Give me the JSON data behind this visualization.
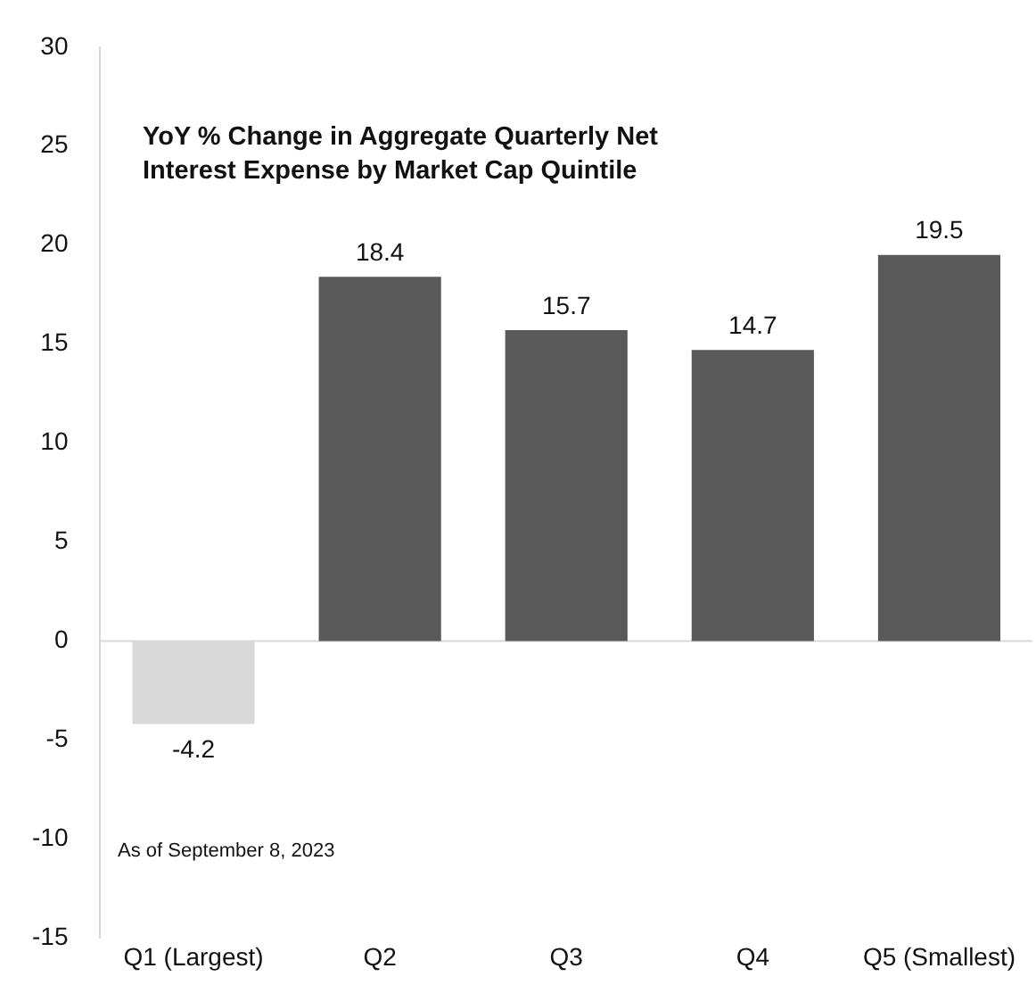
{
  "chart_data": {
    "type": "bar",
    "title": "YoY % Change in Aggregate Quarterly Net Interest Expense by Market Cap Quintile",
    "categories": [
      "Q1 (Largest)",
      "Q2",
      "Q3",
      "Q4",
      "Q5 (Smallest)"
    ],
    "values": [
      -4.2,
      18.4,
      15.7,
      14.7,
      19.5
    ],
    "colors": [
      "#d9d9d9",
      "#595959",
      "#595959",
      "#595959",
      "#595959"
    ],
    "ylim": [
      -15,
      30
    ],
    "yticks": [
      -15,
      -10,
      -5,
      0,
      5,
      10,
      15,
      20,
      25,
      30
    ],
    "grid": false,
    "legend": false,
    "data_labels": true,
    "ref_lines": [
      {
        "axis": "y",
        "value": 0,
        "color": "#d9d9d9"
      }
    ],
    "annotations": [
      "As of September 8, 2023"
    ]
  }
}
